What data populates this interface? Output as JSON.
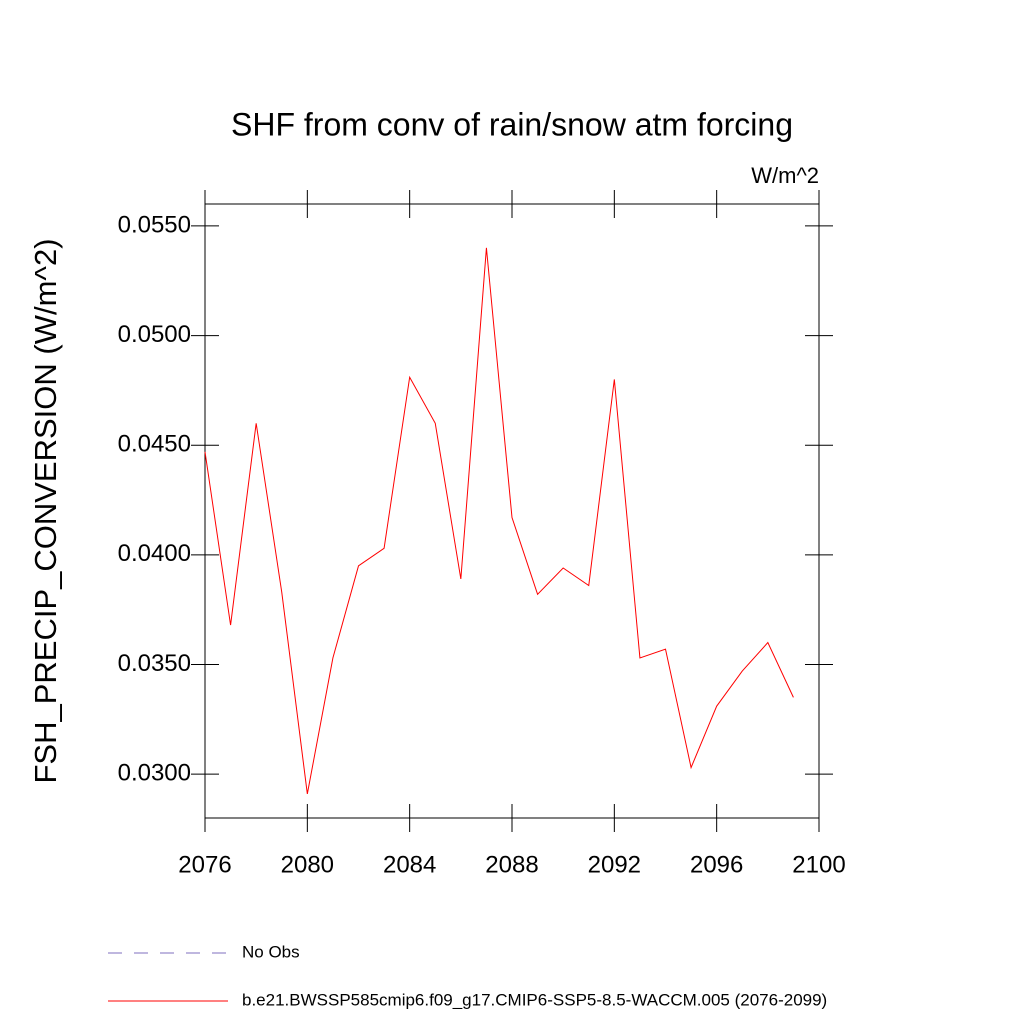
{
  "chart_data": {
    "type": "line",
    "title": "SHF from conv of rain/snow atm forcing",
    "units": "W/m^2",
    "y_label": "FSH_PRECIP_CONVERSION  (W/m^2)",
    "x": [
      2076,
      2077,
      2078,
      2079,
      2080,
      2081,
      2082,
      2083,
      2084,
      2085,
      2086,
      2087,
      2088,
      2089,
      2090,
      2091,
      2092,
      2093,
      2094,
      2095,
      2096,
      2097,
      2098,
      2099
    ],
    "series": [
      {
        "name": "No Obs",
        "color": "#7f6fbf",
        "dashed": true,
        "values": [
          null,
          null,
          null,
          null,
          null,
          null,
          null,
          null,
          null,
          null,
          null,
          null,
          null,
          null,
          null,
          null,
          null,
          null,
          null,
          null,
          null,
          null,
          null,
          null
        ]
      },
      {
        "name": "b.e21.BWSSP585cmip6.f09_g17.CMIP6-SSP5-8.5-WACCM.005 (2076-2099)",
        "color": "#ff0000",
        "dashed": false,
        "values": [
          0.0447,
          0.0368,
          0.046,
          0.0383,
          0.0291,
          0.0353,
          0.0395,
          0.0403,
          0.0481,
          0.046,
          0.0389,
          0.054,
          0.0417,
          0.0382,
          0.0394,
          0.0386,
          0.048,
          0.0353,
          0.0357,
          0.0303,
          0.0331,
          0.0347,
          0.036,
          0.0335
        ]
      }
    ],
    "xlim": [
      2076,
      2100
    ],
    "xticks": [
      2076,
      2080,
      2084,
      2088,
      2092,
      2096,
      2100
    ],
    "ylim": [
      0.028,
      0.056
    ],
    "yticks": [
      {
        "value": 0.03,
        "label": "0.0300"
      },
      {
        "value": 0.035,
        "label": "0.0350"
      },
      {
        "value": 0.04,
        "label": "0.0400"
      },
      {
        "value": 0.045,
        "label": "0.0450"
      },
      {
        "value": 0.05,
        "label": "0.0500"
      },
      {
        "value": 0.055,
        "label": "0.0550"
      }
    ],
    "grid": false,
    "legend": "bottom"
  }
}
